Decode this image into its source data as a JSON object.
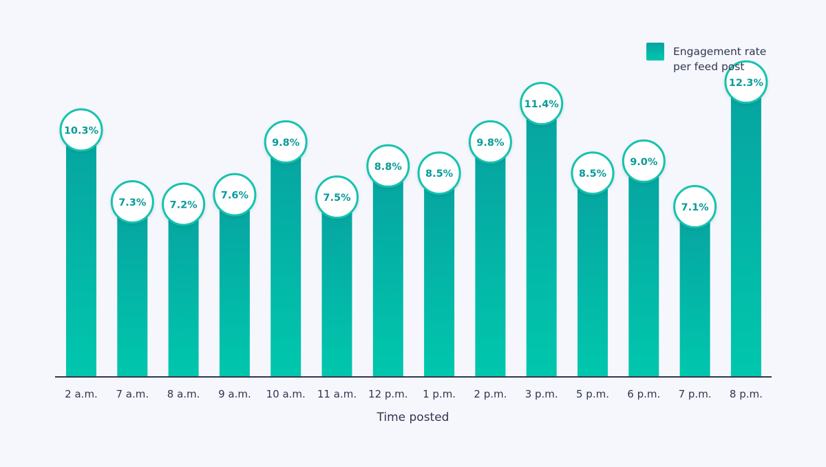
{
  "chart_data": {
    "type": "bar",
    "categories": [
      "2 a.m.",
      "7 a.m.",
      "8 a.m.",
      "9 a.m.",
      "10 a.m.",
      "11 a.m.",
      "12 p.m.",
      "1 p.m.",
      "2 p.m.",
      "3 p.m.",
      "5 p.m.",
      "6 p.m.",
      "7 p.m.",
      "8 p.m."
    ],
    "series": [
      {
        "name": "Engagement rate per feed post",
        "values": [
          10.3,
          7.3,
          7.2,
          7.6,
          9.8,
          7.5,
          8.8,
          8.5,
          9.8,
          11.4,
          8.5,
          9.0,
          7.1,
          12.3
        ]
      }
    ],
    "data_labels": [
      "10.3%",
      "7.3%",
      "7.2%",
      "7.6%",
      "9.8%",
      "7.5%",
      "8.8%",
      "8.5%",
      "9.8%",
      "11.4%",
      "8.5%",
      "9.0%",
      "7.1%",
      "12.3%"
    ],
    "title": "",
    "xlabel": "Time posted",
    "ylabel": "",
    "ylim": [
      0,
      14
    ],
    "grid": false,
    "legend": {
      "position": "top-right",
      "lines": [
        "Engagement rate",
        "per feed post"
      ]
    },
    "colors": {
      "bar_top": "#07a3a0",
      "bar_bottom": "#00c7ad",
      "label_text": "#079b99",
      "badge_border": "#16c2ae",
      "axis": "#2f3550",
      "text": "#2f3550",
      "background": "#f6f7fd"
    }
  }
}
